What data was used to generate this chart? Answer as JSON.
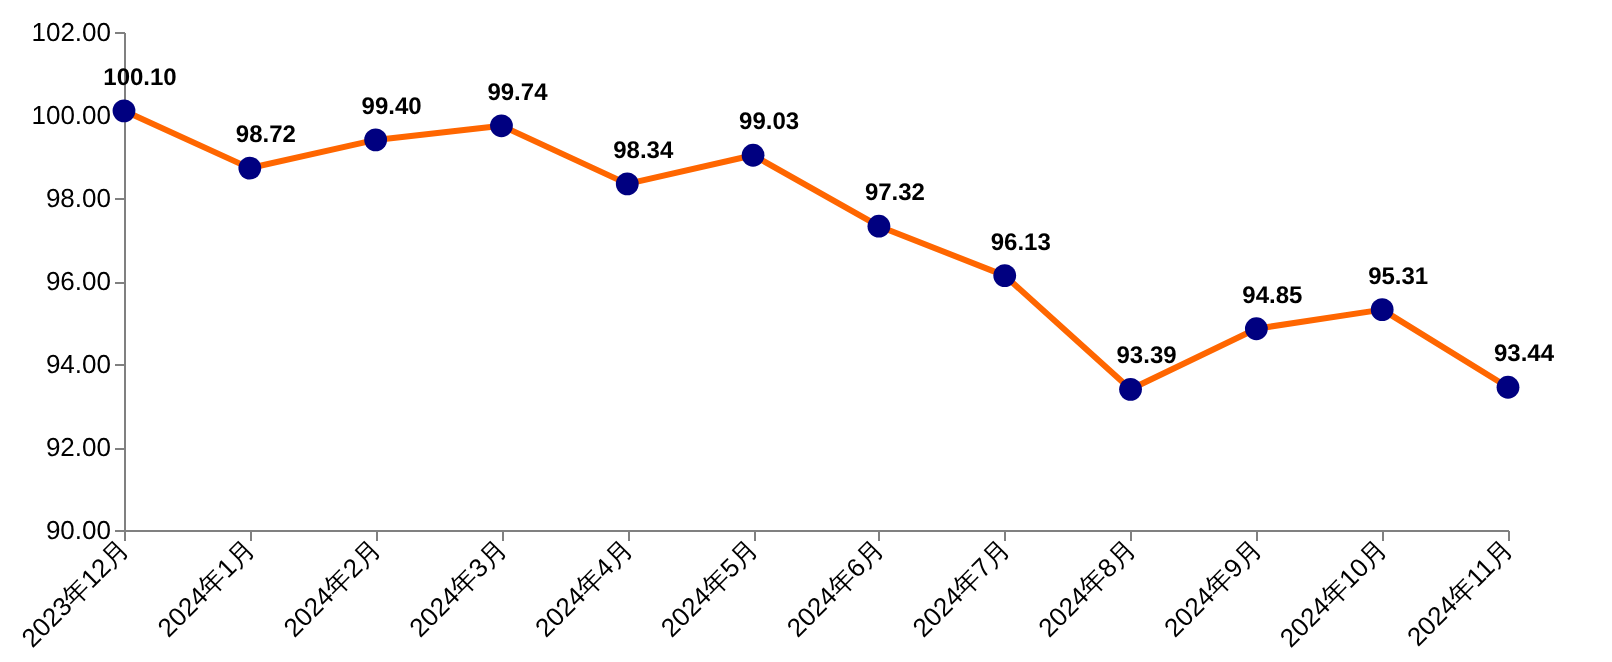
{
  "chart_data": {
    "type": "line",
    "categories": [
      "2023年12月",
      "2024年1月",
      "2024年2月",
      "2024年3月",
      "2024年4月",
      "2024年5月",
      "2024年6月",
      "2024年7月",
      "2024年8月",
      "2024年9月",
      "2024年10月",
      "2024年11月"
    ],
    "series": [
      {
        "color": "#ff6600",
        "colors": [
          "#000080",
          "#000080",
          "#000080",
          "#000080",
          "#000080",
          "#000080",
          "#000080",
          "#000080",
          "#000080",
          "#000080",
          "#000080",
          "#000080"
        ],
        "values": [
          100.1,
          98.72,
          99.4,
          99.74,
          98.34,
          99.03,
          97.32,
          96.13,
          93.39,
          94.85,
          95.31,
          93.44
        ],
        "value_labels": [
          "100.10",
          "98.72",
          "99.40",
          "99.74",
          "98.34",
          "99.03",
          "97.32",
          "96.13",
          "93.39",
          "94.85",
          "95.31",
          "93.44"
        ]
      }
    ],
    "ylim": [
      90,
      102
    ],
    "yticks": [
      {
        "value": 90,
        "label": "90.00"
      },
      {
        "value": 92,
        "label": "92.00"
      },
      {
        "value": 94,
        "label": "94.00"
      },
      {
        "value": 96,
        "label": "96.00"
      },
      {
        "value": 98,
        "label": "98.00"
      },
      {
        "value": 100,
        "label": "100.00"
      },
      {
        "value": 102,
        "label": "102.00"
      }
    ],
    "marker": "circle",
    "line_style": "solid",
    "grid": false
  }
}
